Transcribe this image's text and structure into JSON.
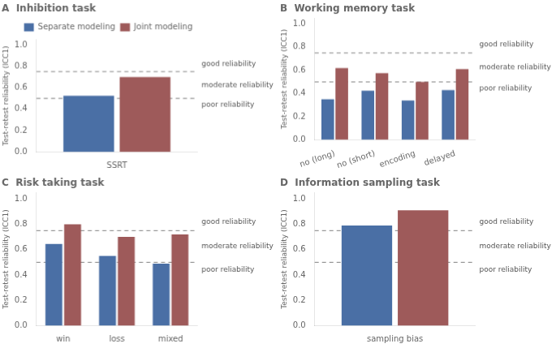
{
  "chart_data": [
    {
      "type": "bar",
      "title": "A  Inhibition task",
      "categories": [
        "SSRT"
      ],
      "series": [
        {
          "name": "Separate modeling",
          "color": "#4a6fa5",
          "values": [
            0.525
          ]
        },
        {
          "name": "Joint modeling",
          "color": "#9e5a5a",
          "values": [
            0.7
          ]
        }
      ],
      "y_label": "Test-retest reliability (ICC1)",
      "ylim": [
        0.0,
        1.05
      ],
      "yticks": [
        {
          "value": 0.0,
          "label": "0.0"
        },
        0.2,
        0.4,
        0.6,
        0.8,
        {
          "value": 1.0,
          "label": "1.0"
        }
      ],
      "grid": false,
      "legend": "upper right",
      "annotations": [
        {
          "type": "hline",
          "y": 0.75,
          "line_style": "dashed"
        },
        {
          "type": "hline",
          "y": 0.5,
          "line_style": "dashed"
        },
        {
          "type": "text",
          "text": "good reliability",
          "y": 0.82
        },
        {
          "type": "text",
          "text": "moderate reliability",
          "y": 0.625
        },
        {
          "type": "text",
          "text": "poor reliability",
          "y": 0.44
        }
      ]
    },
    {
      "type": "bar",
      "title": "B  Working memory task",
      "categories": [
        "no (long)",
        "no (short)",
        "encoding",
        "delayed"
      ],
      "series": [
        {
          "name": "Separate modeling",
          "color": "#4a6fa5",
          "values": [
            0.35,
            0.425,
            0.34,
            0.43
          ]
        },
        {
          "name": "Joint modeling",
          "color": "#9e5a5a",
          "values": [
            0.62,
            0.575,
            0.5,
            0.61
          ]
        }
      ],
      "y_label": "Test-retest reliability (ICC1)",
      "ylim": [
        0.0,
        1.05
      ],
      "yticks": [
        {
          "value": 0.0,
          "label": "0.0"
        },
        0.2,
        0.4,
        0.6,
        0.8,
        {
          "value": 1.0,
          "label": "1.0"
        }
      ],
      "grid": false,
      "annotations": [
        {
          "type": "hline",
          "y": 0.75,
          "line_style": "dashed"
        },
        {
          "type": "hline",
          "y": 0.5,
          "line_style": "dashed"
        },
        {
          "type": "text",
          "text": "good reliability",
          "y": 0.82
        },
        {
          "type": "text",
          "text": "moderate reliability",
          "y": 0.625
        },
        {
          "type": "text",
          "text": "poor reliability",
          "y": 0.44
        }
      ]
    },
    {
      "type": "bar",
      "title": "C  Risk taking task",
      "categories": [
        "win",
        "loss",
        "mixed"
      ],
      "series": [
        {
          "name": "Separate modeling",
          "color": "#4a6fa5",
          "values": [
            0.645,
            0.55,
            0.49
          ]
        },
        {
          "name": "Joint modeling",
          "color": "#9e5a5a",
          "values": [
            0.8,
            0.7,
            0.72
          ]
        }
      ],
      "y_label": "Test-retest reliability (ICC1)",
      "ylim": [
        0.0,
        1.05
      ],
      "yticks": [
        {
          "value": 0.0,
          "label": "0.0"
        },
        0.2,
        0.4,
        0.6,
        0.8,
        {
          "value": 1.0,
          "label": "1.0"
        }
      ],
      "grid": false,
      "annotations": [
        {
          "type": "hline",
          "y": 0.75,
          "line_style": "dashed"
        },
        {
          "type": "hline",
          "y": 0.5,
          "line_style": "dashed"
        },
        {
          "type": "text",
          "text": "good reliability",
          "y": 0.82
        },
        {
          "type": "text",
          "text": "moderate reliability",
          "y": 0.625
        },
        {
          "type": "text",
          "text": "poor reliability",
          "y": 0.44
        }
      ]
    },
    {
      "type": "bar",
      "title": "D  Information sampling task",
      "categories": [
        "sampling bias"
      ],
      "series": [
        {
          "name": "Separate modeling",
          "color": "#4a6fa5",
          "values": [
            0.79
          ]
        },
        {
          "name": "Joint modeling",
          "color": "#9e5a5a",
          "values": [
            0.91
          ]
        }
      ],
      "y_label": "Test-retest reliability (ICC1)",
      "ylim": [
        0.0,
        1.05
      ],
      "yticks": [
        {
          "value": 0.0,
          "label": "0.0"
        },
        0.2,
        0.4,
        0.6,
        0.8,
        {
          "value": 1.0,
          "label": "1.0"
        }
      ],
      "grid": false,
      "annotations": [
        {
          "type": "hline",
          "y": 0.75,
          "line_style": "dashed"
        },
        {
          "type": "hline",
          "y": 0.5,
          "line_style": "dashed"
        },
        {
          "type": "text",
          "text": "good reliability",
          "y": 0.82
        },
        {
          "type": "text",
          "text": "moderate reliability",
          "y": 0.625
        },
        {
          "type": "text",
          "text": "poor reliability",
          "y": 0.44
        }
      ]
    }
  ]
}
